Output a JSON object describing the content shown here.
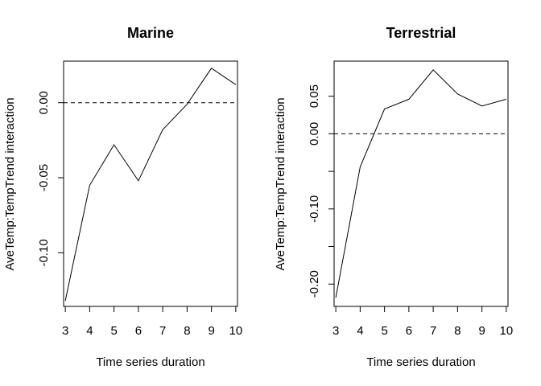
{
  "chart_data": [
    {
      "type": "line",
      "title": "Marine",
      "xlabel": "Time series duration",
      "ylabel": "AveTemp:TempTrend interaction",
      "x": [
        3,
        4,
        5,
        6,
        7,
        8,
        9,
        10
      ],
      "y": [
        -0.132,
        -0.055,
        -0.028,
        -0.052,
        -0.018,
        -0.001,
        0.023,
        0.012
      ],
      "xticks": [
        3,
        4,
        5,
        6,
        7,
        8,
        9,
        10
      ],
      "xtick_labels": [
        "3",
        "4",
        "5",
        "6",
        "7",
        "8",
        "9",
        "10"
      ],
      "yticks": [
        -0.1,
        -0.05,
        0.0
      ],
      "ytick_labels": [
        "-0.10",
        "-0.05",
        "0.00"
      ],
      "xlim": [
        2.93,
        10.07
      ],
      "ylim": [
        -0.1357,
        0.0277
      ],
      "reference_line": {
        "y": 0,
        "style": "dashed"
      }
    },
    {
      "type": "line",
      "title": "Terrestrial",
      "xlabel": "Time series duration",
      "ylabel": "AveTemp:TempTrend interaction",
      "x": [
        3,
        4,
        5,
        6,
        7,
        8,
        9,
        10
      ],
      "y": [
        -0.218,
        -0.044,
        0.033,
        0.046,
        0.085,
        0.053,
        0.037,
        0.046
      ],
      "xticks": [
        3,
        4,
        5,
        6,
        7,
        8,
        9,
        10
      ],
      "xtick_labels": [
        "3",
        "4",
        "5",
        "6",
        "7",
        "8",
        "9",
        "10"
      ],
      "yticks": [
        -0.2,
        -0.15,
        -0.1,
        -0.05,
        0.0,
        0.05
      ],
      "ytick_labels": [
        "-0.20",
        "",
        "-0.10",
        "",
        "0.00",
        "0.05"
      ],
      "xlim": [
        2.93,
        10.07
      ],
      "ylim": [
        -0.2297,
        0.0967
      ],
      "reference_line": {
        "y": 0,
        "style": "dashed"
      }
    }
  ]
}
